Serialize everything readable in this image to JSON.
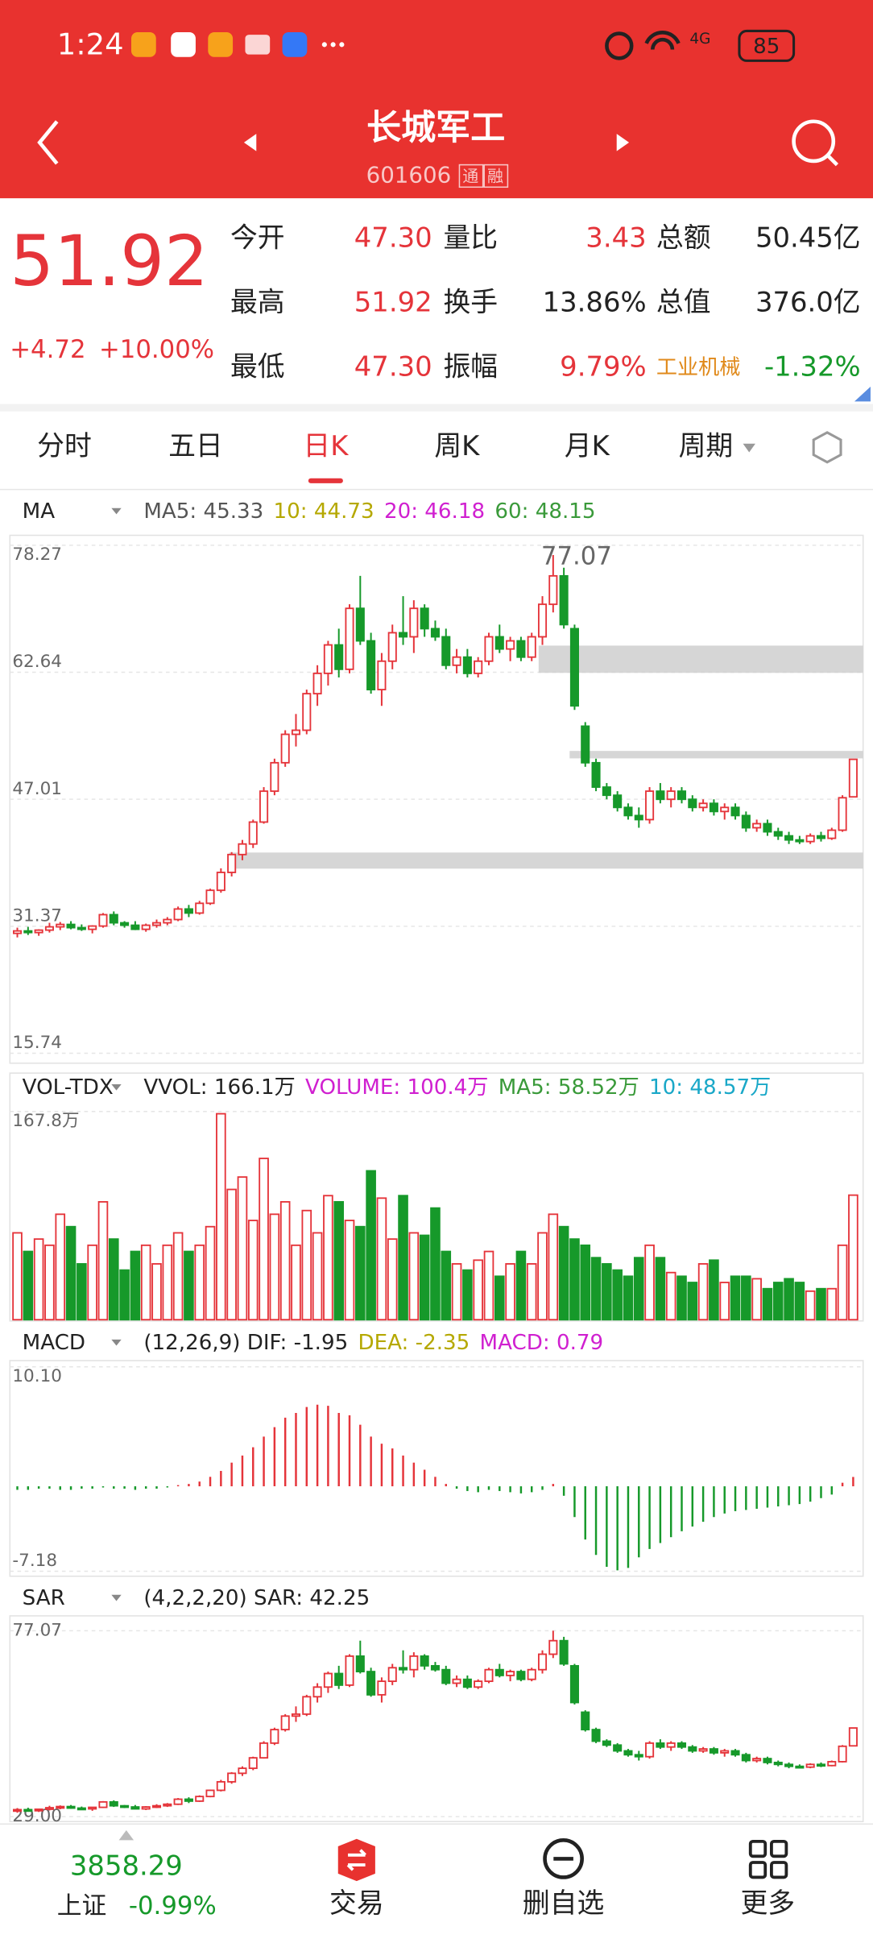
{
  "status_bar": {
    "time": "1:24",
    "network": "4G",
    "battery": "85"
  },
  "header": {
    "title": "长城军工",
    "code": "601606",
    "badges": [
      "通",
      "融"
    ]
  },
  "quote": {
    "price": "51.92",
    "change": "+4.72",
    "change_pct": "+10.00%",
    "stats": [
      [
        "今开",
        "47.30",
        "量比",
        "3.43",
        "总额",
        "50.45亿"
      ],
      [
        "最高",
        "51.92",
        "换手",
        "13.86%",
        "总值",
        "376.0亿"
      ],
      [
        "最低",
        "47.30",
        "振幅",
        "9.79%",
        "工业机械",
        "-1.32%"
      ]
    ]
  },
  "tabs": [
    "分时",
    "五日",
    "日K",
    "周K",
    "月K",
    "周期"
  ],
  "price_chart": {
    "indicator": "MA",
    "legend": [
      "MA5: 45.33",
      "10: 44.73",
      "20: 46.18",
      "60: 48.15"
    ],
    "ylim": [
      15.74,
      78.27
    ],
    "yticks": [
      78.27,
      62.64,
      47.01,
      31.37,
      15.74
    ],
    "peak_label": 77.07,
    "candles": [
      [
        30.5,
        31.2,
        30.0,
        30.8
      ],
      [
        30.8,
        31.3,
        30.3,
        30.6
      ],
      [
        30.6,
        31.0,
        30.2,
        30.9
      ],
      [
        30.9,
        31.8,
        30.6,
        31.3
      ],
      [
        31.3,
        31.9,
        30.9,
        31.6
      ],
      [
        31.6,
        32.0,
        31.0,
        31.2
      ],
      [
        31.2,
        31.6,
        30.8,
        31.0
      ],
      [
        31.0,
        31.5,
        30.5,
        31.4
      ],
      [
        31.4,
        33.0,
        31.2,
        32.8
      ],
      [
        32.8,
        33.2,
        31.5,
        31.8
      ],
      [
        31.8,
        32.0,
        31.2,
        31.5
      ],
      [
        31.5,
        32.0,
        30.9,
        31.0
      ],
      [
        31.0,
        31.7,
        30.7,
        31.5
      ],
      [
        31.5,
        32.2,
        31.2,
        31.8
      ],
      [
        31.8,
        32.5,
        31.5,
        32.2
      ],
      [
        32.2,
        33.8,
        32.0,
        33.5
      ],
      [
        33.5,
        34.0,
        32.5,
        33.0
      ],
      [
        33.0,
        34.5,
        32.8,
        34.2
      ],
      [
        34.2,
        36.0,
        34.0,
        35.8
      ],
      [
        35.8,
        38.5,
        35.5,
        38.0
      ],
      [
        38.0,
        40.5,
        37.5,
        40.2
      ],
      [
        40.2,
        42.0,
        39.5,
        41.5
      ],
      [
        41.5,
        44.5,
        41.0,
        44.2
      ],
      [
        44.2,
        48.5,
        44.0,
        48.0
      ],
      [
        48.0,
        52.0,
        47.5,
        51.5
      ],
      [
        51.5,
        55.5,
        51.0,
        55.0
      ],
      [
        55.0,
        57.5,
        53.5,
        55.5
      ],
      [
        55.5,
        60.5,
        55.0,
        60.0
      ],
      [
        60.0,
        63.5,
        58.5,
        62.5
      ],
      [
        62.5,
        66.5,
        61.0,
        66.0
      ],
      [
        66.0,
        68.0,
        62.0,
        63.0
      ],
      [
        63.0,
        71.0,
        62.5,
        70.5
      ],
      [
        70.5,
        74.5,
        66.0,
        66.5
      ],
      [
        66.5,
        67.5,
        60.0,
        60.5
      ],
      [
        60.5,
        65.0,
        58.5,
        64.0
      ],
      [
        64.0,
        68.5,
        63.0,
        67.5
      ],
      [
        67.5,
        72.0,
        66.0,
        67.0
      ],
      [
        67.0,
        71.5,
        65.0,
        70.5
      ],
      [
        70.5,
        71.0,
        67.0,
        68.0
      ],
      [
        68.0,
        69.0,
        66.5,
        67.0
      ],
      [
        67.0,
        68.0,
        63.0,
        63.5
      ],
      [
        63.5,
        65.5,
        62.5,
        64.5
      ],
      [
        64.5,
        65.5,
        62.0,
        62.5
      ],
      [
        62.5,
        64.5,
        62.0,
        64.0
      ],
      [
        64.0,
        67.5,
        63.5,
        67.0
      ],
      [
        67.0,
        68.5,
        65.0,
        65.5
      ],
      [
        65.5,
        67.0,
        64.0,
        66.5
      ],
      [
        66.5,
        67.0,
        64.0,
        64.5
      ],
      [
        64.5,
        67.5,
        64.0,
        67.0
      ],
      [
        67.0,
        72.0,
        66.0,
        71.0
      ],
      [
        71.0,
        77.07,
        70.0,
        74.5
      ],
      [
        74.5,
        75.5,
        68.0,
        68.5
      ],
      [
        68.0,
        68.5,
        58.0,
        58.5
      ],
      [
        56.0,
        56.5,
        51.0,
        51.5
      ],
      [
        51.5,
        52.0,
        48.0,
        48.5
      ],
      [
        48.5,
        49.0,
        47.0,
        47.5
      ],
      [
        47.5,
        48.0,
        45.5,
        46.0
      ],
      [
        46.0,
        46.5,
        44.5,
        45.0
      ],
      [
        45.0,
        46.0,
        43.5,
        44.5
      ],
      [
        44.5,
        48.5,
        44.0,
        48.0
      ],
      [
        48.0,
        49.0,
        46.5,
        47.0
      ],
      [
        47.0,
        48.5,
        46.0,
        48.0
      ],
      [
        48.0,
        48.5,
        46.5,
        47.0
      ],
      [
        47.0,
        47.5,
        45.5,
        46.0
      ],
      [
        46.0,
        47.0,
        45.5,
        46.5
      ],
      [
        46.5,
        47.0,
        45.0,
        45.5
      ],
      [
        45.5,
        46.5,
        44.5,
        46.0
      ],
      [
        46.0,
        46.5,
        44.5,
        45.0
      ],
      [
        45.0,
        45.5,
        43.0,
        43.5
      ],
      [
        43.5,
        44.5,
        43.0,
        44.0
      ],
      [
        44.0,
        44.5,
        42.5,
        43.0
      ],
      [
        43.0,
        43.5,
        42.0,
        42.5
      ],
      [
        42.5,
        43.0,
        41.5,
        42.0
      ],
      [
        42.0,
        42.5,
        41.5,
        41.8
      ],
      [
        41.8,
        42.8,
        41.5,
        42.5
      ],
      [
        42.5,
        43.0,
        41.8,
        42.2
      ],
      [
        42.2,
        43.5,
        42.0,
        43.2
      ],
      [
        43.2,
        47.5,
        43.0,
        47.19
      ],
      [
        47.3,
        51.92,
        47.3,
        51.92
      ]
    ]
  },
  "volume_chart": {
    "indicator": "VOL-TDX",
    "legend": [
      "VVOL: 166.1万",
      "VOLUME: 100.4万",
      "MA5: 58.52万",
      "10: 48.57万"
    ],
    "ylim": [
      0,
      167.8
    ],
    "yticks": [
      {
        "value": 167.8,
        "label": "167.8万"
      }
    ],
    "values": [
      70,
      55,
      65,
      60,
      85,
      75,
      45,
      60,
      95,
      65,
      40,
      55,
      60,
      45,
      60,
      70,
      55,
      60,
      75,
      166,
      105,
      115,
      80,
      130,
      85,
      95,
      60,
      88,
      70,
      100,
      95,
      80,
      75,
      120,
      98,
      65,
      100,
      70,
      68,
      90,
      55,
      45,
      40,
      48,
      55,
      35,
      45,
      55,
      45,
      70,
      85,
      75,
      65,
      60,
      50,
      45,
      40,
      35,
      50,
      60,
      50,
      38,
      35,
      30,
      45,
      48,
      30,
      35,
      35,
      33,
      25,
      30,
      33,
      30,
      23,
      25,
      25,
      60,
      100.4
    ]
  },
  "macd_chart": {
    "indicator": "MACD",
    "legend": [
      "(12,26,9) DIF: -1.95",
      "DEA: -2.35",
      "MACD: 0.79"
    ],
    "ylim": [
      -7.18,
      10.1
    ],
    "yticks": [
      {
        "value": 10.1,
        "label": "10.10"
      },
      -7.18
    ],
    "values": [
      -0.3,
      -0.3,
      -0.2,
      -0.2,
      -0.3,
      -0.3,
      -0.2,
      -0.2,
      -0.1,
      -0.2,
      -0.2,
      -0.3,
      -0.2,
      -0.2,
      -0.1,
      0.1,
      0.2,
      0.4,
      0.8,
      1.3,
      2.0,
      2.6,
      3.3,
      4.2,
      5.0,
      5.8,
      6.2,
      6.7,
      6.9,
      6.8,
      6.2,
      6.0,
      5.2,
      4.2,
      3.6,
      3.2,
      2.6,
      2.0,
      1.4,
      0.8,
      0.2,
      -0.2,
      -0.4,
      -0.5,
      -0.3,
      -0.4,
      -0.5,
      -0.6,
      -0.5,
      -0.3,
      0.2,
      -0.8,
      -2.6,
      -4.5,
      -5.8,
      -6.8,
      -7.1,
      -6.9,
      -6.0,
      -5.3,
      -4.8,
      -4.3,
      -3.8,
      -3.4,
      -3.0,
      -2.6,
      -2.3,
      -2.1,
      -2.0,
      -1.9,
      -1.8,
      -1.7,
      -1.6,
      -1.5,
      -1.3,
      -1.0,
      -0.7,
      0.3,
      0.79
    ]
  },
  "sar_chart": {
    "indicator": "SAR",
    "legend": [
      "(4,2,2,20) SAR: 42.25"
    ],
    "ylim": [
      29,
      77.07
    ],
    "yticks": [
      77.07,
      {
        "value": 29,
        "label": "29.00"
      }
    ]
  },
  "footer": {
    "index_value": "3858.29",
    "index_name": "上证",
    "index_change": "-0.99%",
    "buttons": [
      "交易",
      "删自选",
      "更多"
    ]
  }
}
